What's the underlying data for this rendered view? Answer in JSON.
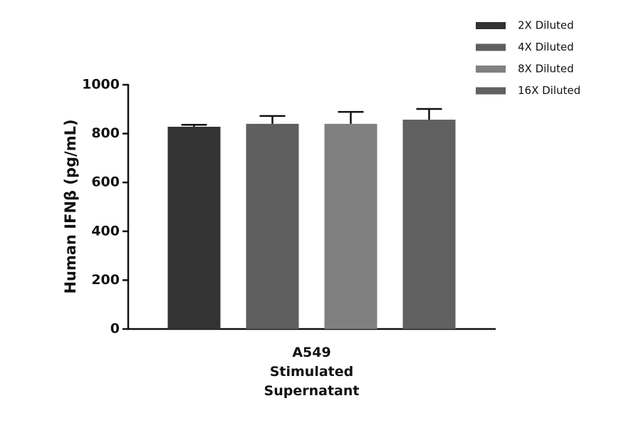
{
  "chart_data": {
    "type": "bar",
    "y_label": "Human IFNβ (pg/mL)",
    "categories": [
      "A549 Stimulated Supernatant"
    ],
    "series": [
      {
        "name": "2X Diluted",
        "color": "#333333",
        "values": [
          828
        ],
        "errors": [
          8
        ]
      },
      {
        "name": "4X Diluted",
        "color": "#5f5f5f",
        "values": [
          840
        ],
        "errors": [
          32
        ]
      },
      {
        "name": "8X Diluted",
        "color": "#808080",
        "values": [
          840
        ],
        "errors": [
          49
        ]
      },
      {
        "name": "16X Diluted",
        "color": "#606060",
        "values": [
          857
        ],
        "errors": [
          44
        ]
      }
    ],
    "ylim": [
      0,
      1000
    ],
    "yticks": [
      0,
      200,
      400,
      600,
      800,
      1000
    ],
    "legend": "top-right"
  }
}
